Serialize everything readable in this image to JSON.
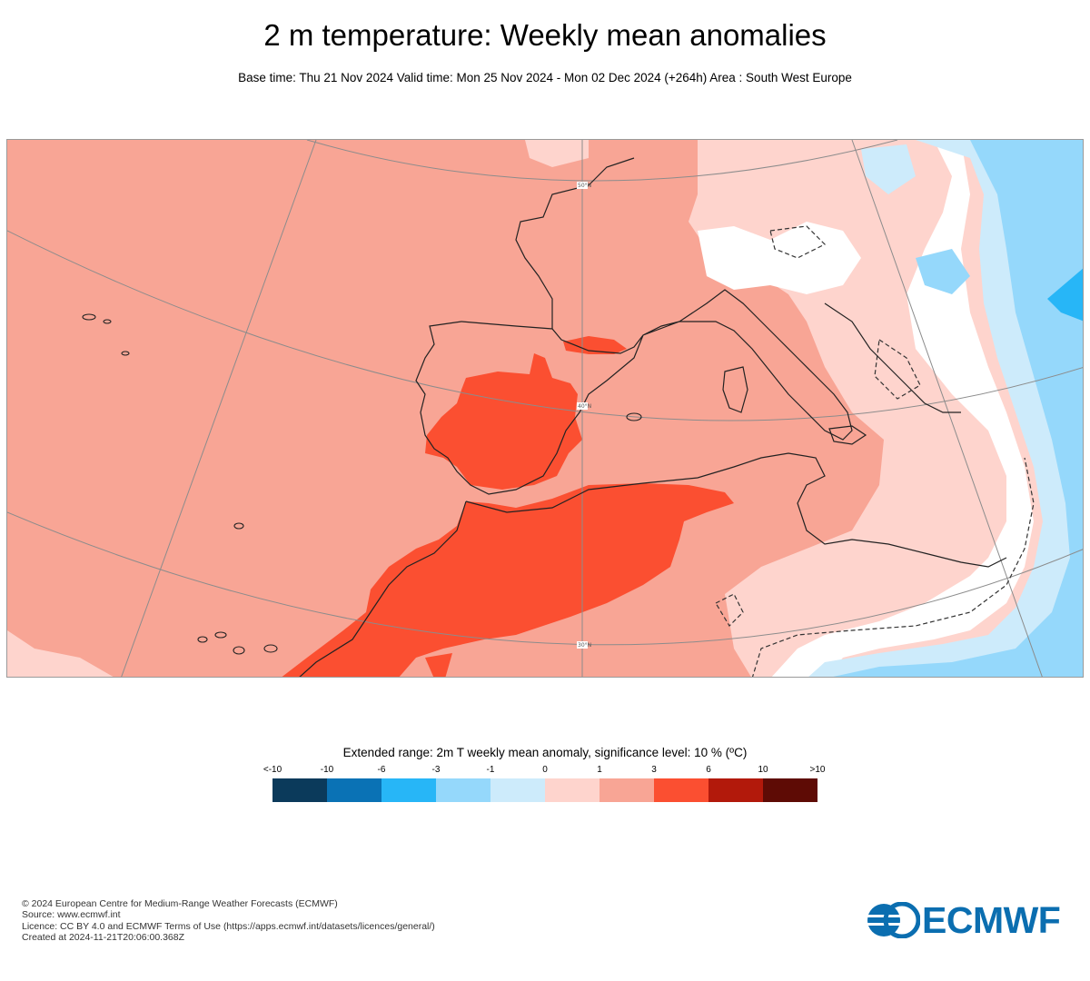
{
  "title": "2 m temperature: Weekly mean anomalies",
  "subtitle": "Base time: Thu 21 Nov 2024 Valid time: Mon 25 Nov 2024 - Mon 02 Dec 2024 (+264h) Area : South West Europe",
  "map": {
    "lat_labels": [
      "50°N",
      "40°N",
      "30°N"
    ]
  },
  "legend": {
    "title": "Extended range: 2m T weekly mean anomaly, significance level: 10 % (ºC)",
    "ticks": [
      "<-10",
      "-10",
      "-6",
      "-3",
      "-1",
      "0",
      "1",
      "3",
      "6",
      "10",
      ">10"
    ],
    "colors": [
      "#0b3a5b",
      "#0a72b5",
      "#27b6f7",
      "#95d8fb",
      "#cdebfb",
      "#fed4cd",
      "#f8a595",
      "#fb4f31",
      "#b2190b",
      "#5e0b05"
    ]
  },
  "footer": {
    "line1": "© 2024 European Centre for Medium-Range Weather Forecasts (ECMWF)",
    "line2": "Source: www.ecmwf.int",
    "line3": "Licence: CC BY 4.0 and ECMWF Terms of Use (https://apps.ecmwf.int/datasets/licences/general/)",
    "line4": "Created at 2024-11-21T20:06:00.368Z"
  },
  "logo": {
    "text": "ECMWF",
    "color": "#0b6eb0"
  }
}
